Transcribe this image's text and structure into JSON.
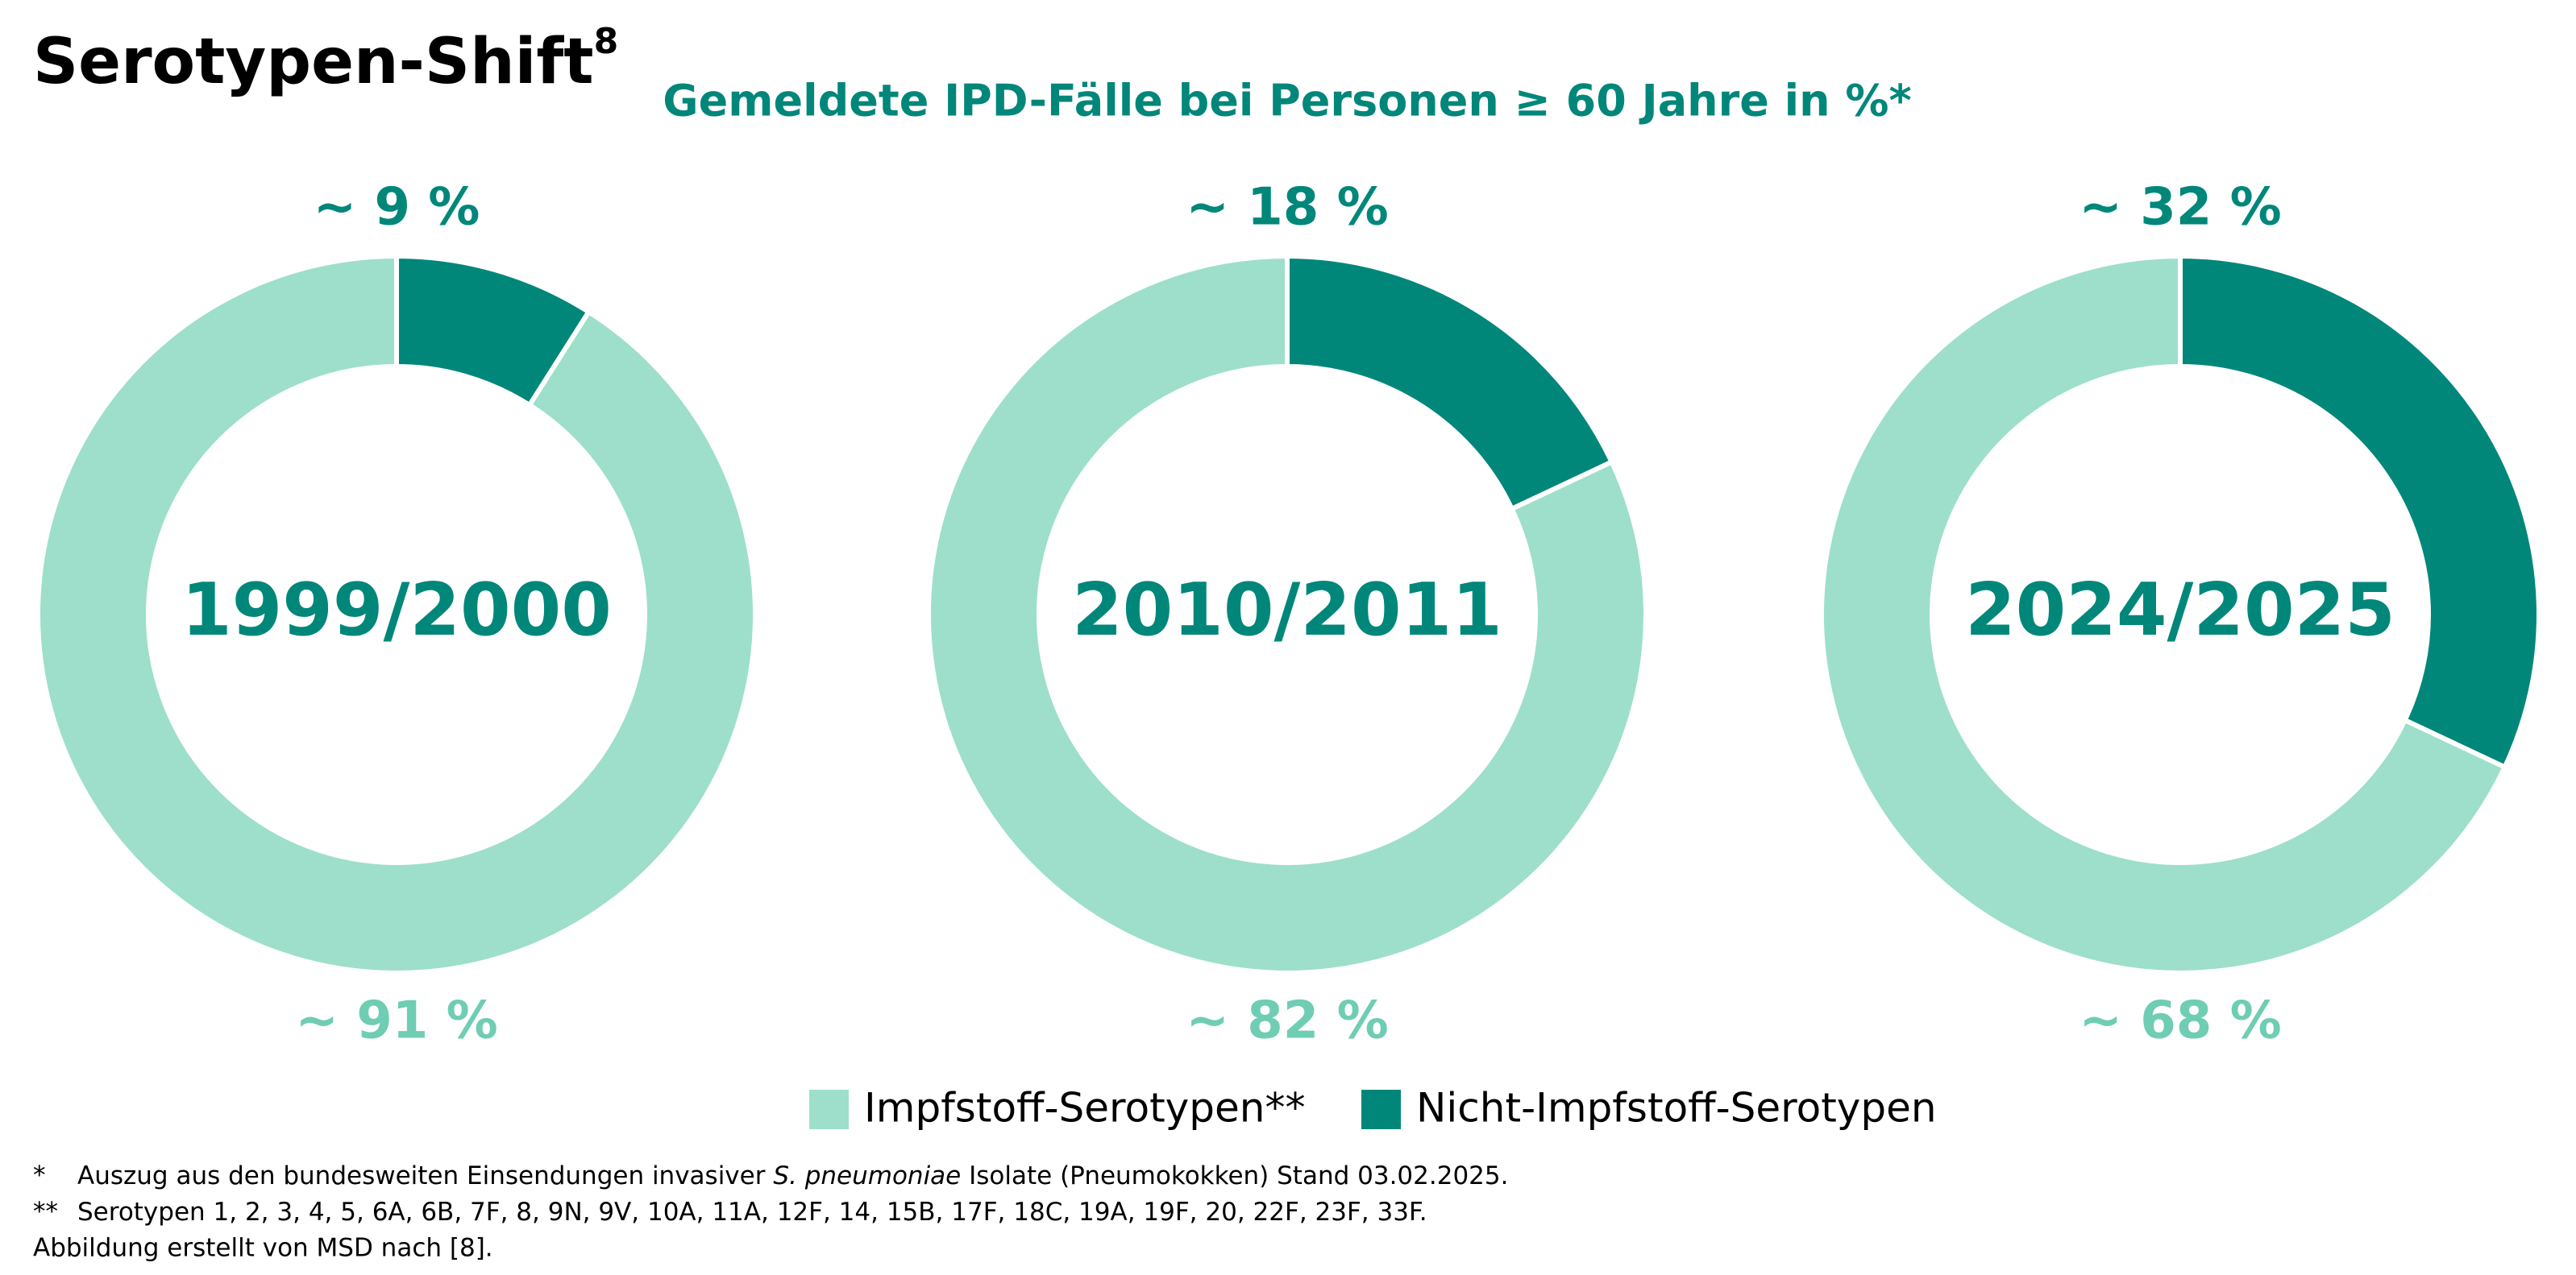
{
  "title": "Serotypen-Shift",
  "title_ref": "8",
  "subtitle": "Gemeldete IPD-Fälle bei Personen ≥ 60 Jahre in %*",
  "legend": {
    "names": [
      "Impfstoff-Serotypen**",
      "Nicht-Impfstoff-Serotypen"
    ],
    "colors": [
      "#9ddfca",
      "#00877a"
    ]
  },
  "chart_data": [
    {
      "type": "donut",
      "title": "1999/2000",
      "values": [
        9,
        91
      ],
      "value_labels": [
        "~ 9 %",
        "~ 91 %"
      ],
      "colors": [
        "#00877a",
        "#9ddfca"
      ]
    },
    {
      "type": "donut",
      "title": "2010/2011",
      "values": [
        18,
        82
      ],
      "value_labels": [
        "~ 18 %",
        "~ 82 %"
      ],
      "colors": [
        "#00877a",
        "#9ddfca"
      ]
    },
    {
      "type": "donut",
      "title": "2024/2025",
      "values": [
        32,
        68
      ],
      "value_labels": [
        "~ 32 %",
        "~ 68 %"
      ],
      "colors": [
        "#00877a",
        "#9ddfca"
      ]
    }
  ],
  "footnotes": [
    {
      "marker": "*",
      "parts": [
        "Auszug aus den bundesweiten Einsendungen invasiver ",
        "S. pneumoniae",
        " Isolate (Pneumokokken) Stand 03.02.2025."
      ]
    },
    {
      "marker": "**",
      "parts": [
        "Serotypen 1, 2, 3, 4, 5, 6A, 6B, 7F, 8, 9N, 9V, 10A, 11A, 12F, 14, 15B, 17F, 18C, 19A, 19F, 20, 22F, 23F, 33F."
      ]
    }
  ],
  "credit": "Abbildung erstellt von MSD nach [8]."
}
